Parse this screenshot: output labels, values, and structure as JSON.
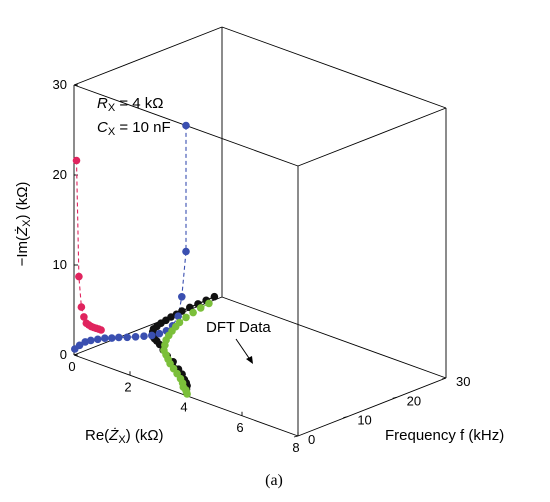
{
  "chart_data": {
    "type": "scatter",
    "projection": "3d",
    "caption": "(a)",
    "annotation_lines": [
      {
        "sym": "R",
        "sub": "X",
        "rest": " = 4 kΩ"
      },
      {
        "sym": "C",
        "sub": "X",
        "rest": " = 10 nF"
      }
    ],
    "axes": {
      "re": {
        "label": {
          "pre": "Re(",
          "sym": "Ż",
          "sub": "X",
          "post": ") (kΩ)"
        },
        "ticks": [
          "0",
          "2",
          "4",
          "6",
          "8"
        ],
        "range": [
          0,
          8
        ]
      },
      "im": {
        "label": {
          "pre": "−Im(",
          "sym": "Ż",
          "sub": "X",
          "post": ") (kΩ)"
        },
        "ticks": [
          "0",
          "10",
          "20",
          "30"
        ],
        "range": [
          0,
          30
        ]
      },
      "freq": {
        "label": "Frequency f (kHz)",
        "ticks": [
          "0",
          "10",
          "20",
          "30"
        ],
        "range": [
          0,
          30
        ]
      }
    },
    "dft_label": "DFT Data",
    "series": [
      {
        "id": "3d-locus",
        "color": "#111111",
        "points": [
          [
            3.93,
            0.5,
            0.5
          ],
          [
            3.9,
            0.8,
            0.8
          ],
          [
            3.83,
            1.0,
            1.0
          ],
          [
            3.73,
            1.2,
            1.2
          ],
          [
            3.58,
            1.55,
            1.6
          ],
          [
            3.38,
            1.8,
            2.0
          ],
          [
            3.1,
            2.2,
            2.5
          ],
          [
            2.8,
            2.4,
            3.0
          ],
          [
            2.48,
            2.5,
            4.0
          ],
          [
            2.18,
            2.55,
            5.0
          ],
          [
            1.9,
            2.4,
            6.0
          ],
          [
            1.64,
            2.15,
            7.0
          ],
          [
            1.42,
            1.9,
            8.0
          ],
          [
            1.23,
            1.75,
            9.0
          ],
          [
            1.05,
            1.6,
            10.0
          ],
          [
            0.9,
            1.55,
            11.0
          ],
          [
            0.76,
            1.35,
            12.5
          ],
          [
            0.64,
            1.25,
            14.0
          ],
          [
            0.55,
            1.15,
            15.5
          ],
          [
            0.47,
            1.1,
            17.0
          ],
          [
            0.4,
            1.0,
            18.5
          ],
          [
            0.33,
            0.95,
            20.0
          ],
          [
            0.26,
            0.85,
            22.0
          ],
          [
            0.2,
            0.75,
            24.0
          ],
          [
            0.14,
            0.65,
            26.0
          ],
          [
            0.08,
            0.55,
            28.0
          ]
        ]
      },
      {
        "id": "projection-re-im",
        "color": "#3a4fb0",
        "points": [
          [
            0.03,
            0.7,
            0.0
          ],
          [
            0.2,
            1.3,
            0.0
          ],
          [
            0.4,
            1.9,
            0.0
          ],
          [
            0.6,
            2.3,
            0.0
          ],
          [
            0.85,
            2.7,
            0.0
          ],
          [
            1.1,
            3.1,
            0.0
          ],
          [
            1.35,
            3.4,
            0.0
          ],
          [
            1.6,
            3.75,
            0.0
          ],
          [
            1.9,
            4.1,
            0.0
          ],
          [
            2.2,
            4.5,
            0.0
          ],
          [
            2.5,
            4.9,
            0.0
          ],
          [
            2.78,
            5.3,
            0.0
          ],
          [
            3.05,
            5.8,
            0.0
          ],
          [
            3.3,
            6.4,
            0.0
          ],
          [
            3.52,
            7.2,
            0.0
          ],
          [
            3.72,
            8.5,
            0.0
          ],
          [
            3.85,
            10.8,
            0.0
          ],
          [
            4.0,
            16.0,
            0.0
          ],
          [
            4.0,
            30.0,
            0.0
          ]
        ]
      },
      {
        "id": "projection-im-f",
        "color": "#e0245e",
        "points": [
          [
            0.0,
            21.5,
            0.5
          ],
          [
            0.0,
            8.5,
            1.0
          ],
          [
            0.0,
            5.0,
            1.5
          ],
          [
            0.0,
            3.8,
            2.0
          ],
          [
            0.0,
            3.0,
            2.5
          ],
          [
            0.0,
            2.7,
            3.0
          ],
          [
            0.0,
            2.4,
            3.5
          ],
          [
            0.0,
            2.2,
            4.0
          ],
          [
            0.0,
            2.0,
            4.5
          ],
          [
            0.0,
            1.8,
            5.0
          ],
          [
            0.0,
            1.6,
            5.5
          ]
        ]
      },
      {
        "id": "projection-re-f",
        "color": "#7bbf3a",
        "points": [
          [
            3.95,
            0.0,
            0.5
          ],
          [
            3.84,
            0.0,
            1.0
          ],
          [
            3.73,
            0.0,
            1.5
          ],
          [
            3.55,
            0.0,
            2.0
          ],
          [
            3.35,
            0.0,
            3.0
          ],
          [
            3.1,
            0.0,
            4.0
          ],
          [
            2.8,
            0.0,
            5.0
          ],
          [
            2.5,
            0.0,
            6.0
          ],
          [
            2.2,
            0.0,
            7.0
          ],
          [
            1.95,
            0.0,
            8.0
          ],
          [
            1.7,
            0.0,
            9.0
          ],
          [
            1.45,
            0.0,
            10.0
          ],
          [
            1.22,
            0.0,
            11.5
          ],
          [
            1.0,
            0.0,
            13.0
          ],
          [
            0.83,
            0.0,
            14.5
          ],
          [
            0.68,
            0.0,
            16.0
          ],
          [
            0.55,
            0.0,
            17.5
          ],
          [
            0.42,
            0.0,
            19.0
          ],
          [
            0.3,
            0.0,
            21.0
          ],
          [
            0.2,
            0.0,
            23.0
          ],
          [
            0.12,
            0.0,
            25.0
          ],
          [
            0.06,
            0.0,
            27.0
          ]
        ]
      }
    ]
  }
}
